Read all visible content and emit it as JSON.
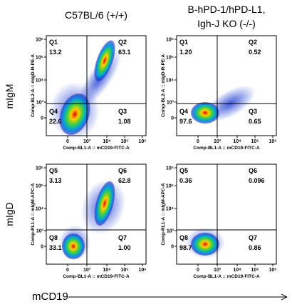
{
  "columns": [
    "C57BL/6 (+/+)",
    [
      "B-hPD-1/hPD-L1,",
      "Igh-J KO (-/-)"
    ]
  ],
  "rows": [
    "mIgM",
    "mIgD"
  ],
  "x_ticks": [
    "0",
    "10³",
    "10⁴",
    "10⁵",
    "10⁶"
  ],
  "y_ticks": [
    "0",
    "10³",
    "10⁴",
    "10⁵",
    "10⁶"
  ],
  "panels": [
    {
      "y_axis": "Comp-BL2-A :: mIgD-R-PE-A",
      "x_axis": "Comp-BL1-A :: mCD19-FITC-A",
      "quadrants": [
        {
          "name": "Q1",
          "value": "13.2"
        },
        {
          "name": "Q2",
          "value": "63.1"
        },
        {
          "name": "Q4",
          "value": "22.6"
        },
        {
          "name": "Q3",
          "value": "1.08"
        }
      ]
    },
    {
      "y_axis": "Comp-BL2-A :: mIgD-R-PE-A",
      "x_axis": "Comp-BL1-A :: mCD19-FITC-A",
      "quadrants": [
        {
          "name": "Q1",
          "value": "1.20"
        },
        {
          "name": "Q2",
          "value": "0.52"
        },
        {
          "name": "Q4",
          "value": "97.6"
        },
        {
          "name": "Q3",
          "value": "0.65"
        }
      ]
    },
    {
      "y_axis": "Comp-RL1-A :: mIgM-APC-A",
      "x_axis": "Comp-BL1-A :: mCD19-FITC-A",
      "quadrants": [
        {
          "name": "Q5",
          "value": "3.13"
        },
        {
          "name": "Q6",
          "value": "62.8"
        },
        {
          "name": "Q8",
          "value": "33.1"
        },
        {
          "name": "Q7",
          "value": "1.00"
        }
      ]
    },
    {
      "y_axis": "Comp-RL1-A :: mIgM-APC-A",
      "x_axis": "Comp-BL1-A :: mCD19-FITC-A",
      "quadrants": [
        {
          "name": "Q5",
          "value": "0.36"
        },
        {
          "name": "Q6",
          "value": "0.096"
        },
        {
          "name": "Q8",
          "value": "98.7"
        },
        {
          "name": "Q7",
          "value": "0.86"
        }
      ]
    }
  ],
  "x_label": "mCD19"
}
